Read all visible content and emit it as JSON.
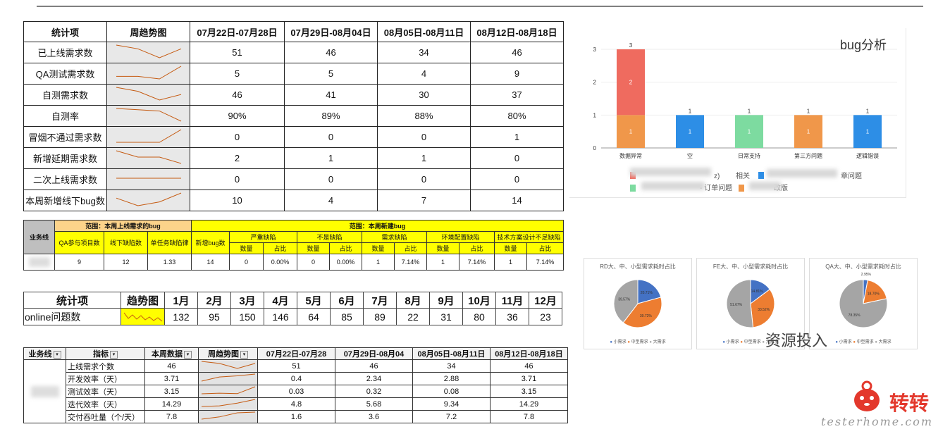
{
  "table1": {
    "headers": [
      "统计项",
      "周趋势图",
      "07月22日-07月28日",
      "07月29日-08月04日",
      "08月05日-08月11日",
      "08月12日-08月18日"
    ],
    "rows": [
      {
        "name": "已上线需求数",
        "values": [
          "51",
          "46",
          "34",
          "46"
        ]
      },
      {
        "name": "QA测试需求数",
        "values": [
          "5",
          "5",
          "4",
          "9"
        ]
      },
      {
        "name": "自测需求数",
        "values": [
          "46",
          "41",
          "30",
          "37"
        ]
      },
      {
        "name": "自测率",
        "values": [
          "90%",
          "89%",
          "88%",
          "80%"
        ]
      },
      {
        "name": "冒烟不通过需求数",
        "values": [
          "0",
          "0",
          "0",
          "1"
        ]
      },
      {
        "name": "新增延期需求数",
        "values": [
          "2",
          "1",
          "1",
          "0"
        ]
      },
      {
        "name": "二次上线需求数",
        "values": [
          "0",
          "0",
          "0",
          "0"
        ]
      },
      {
        "name": "本周新增线下bug数",
        "values": [
          "10",
          "4",
          "7",
          "14"
        ]
      }
    ]
  },
  "table2": {
    "biz_label": "业务线",
    "group1": "范围：本周上线需求的bug",
    "group2": "范围：本周新建bug",
    "cols1": [
      "QA参与项目数",
      "线下缺陷数",
      "单任务缺陷律"
    ],
    "new_bug": "新增bug数",
    "groups": [
      "严重缺陷",
      "不是缺陷",
      "需求缺陷",
      "环境配置缺陷",
      "技术方案设计不足缺陷"
    ],
    "sub": [
      "数量",
      "占比"
    ],
    "values": [
      "9",
      "12",
      "1.33",
      "14",
      "0",
      "0.00%",
      "0",
      "0.00%",
      "1",
      "7.14%",
      "1",
      "7.14%",
      "1",
      "7.14%"
    ]
  },
  "table3": {
    "headers": [
      "统计项",
      "趋势图",
      "1月",
      "2月",
      "3月",
      "4月",
      "5月",
      "6月",
      "7月",
      "8月",
      "9月",
      "10月",
      "11月",
      "12月"
    ],
    "row_name": "online问题数",
    "values": [
      "132",
      "95",
      "150",
      "146",
      "64",
      "85",
      "89",
      "22",
      "31",
      "80",
      "36",
      "23"
    ]
  },
  "table4": {
    "headers": [
      "业务线",
      "指标",
      "本周数据",
      "周趋势图",
      "07月22日-07月28",
      "07月29日-08月04",
      "08月05日-08月11日",
      "08月12日-08月18日"
    ],
    "rows": [
      {
        "metric": "上线需求个数",
        "current": "46",
        "values": [
          "51",
          "46",
          "34",
          "46"
        ]
      },
      {
        "metric": "开发效率（天）",
        "current": "3.71",
        "values": [
          "0.4",
          "2.34",
          "2.88",
          "3.71"
        ]
      },
      {
        "metric": "测试效率（天）",
        "current": "3.15",
        "values": [
          "0.03",
          "0.32",
          "0.08",
          "3.15"
        ]
      },
      {
        "metric": "迭代效率（天）",
        "current": "14.29",
        "values": [
          "4.8",
          "5.68",
          "9.34",
          "14.29"
        ]
      },
      {
        "metric": "交付吞吐量（个/天）",
        "current": "7.8",
        "values": [
          "1.6",
          "3.6",
          "7.2",
          "7.8"
        ]
      }
    ]
  },
  "bug_chart": {
    "title": "bug分析",
    "categories": [
      "数据异常",
      "空",
      "日常支持",
      "第三方问题",
      "逻辑错误"
    ],
    "stacks": [
      {
        "bottom": 1,
        "top": 2,
        "total": 3,
        "colors": [
          "#f0974a",
          "#ef6b5f"
        ]
      },
      {
        "bottom": 1,
        "total": 1,
        "colors": [
          "#2d8ee6"
        ]
      },
      {
        "bottom": 1,
        "total": 1,
        "colors": [
          "#7ddba0"
        ]
      },
      {
        "bottom": 1,
        "total": 1,
        "colors": [
          "#f0974a"
        ]
      },
      {
        "bottom": 1,
        "total": 1,
        "colors": [
          "#2d8ee6"
        ]
      }
    ],
    "y_ticks": [
      "0",
      "1",
      "2",
      "3"
    ],
    "legend_fragments": [
      "z)",
      "相关",
      "章问题",
      "- 订单问题",
      "改版"
    ]
  },
  "pies": [
    {
      "title": "RD大、中、小型需求耗时占比",
      "slices": [
        20.71,
        39.72,
        39.57
      ],
      "labels": [
        "20.71%",
        "39.72%",
        "39.57%"
      ]
    },
    {
      "title": "FE大、中、小型需求耗时占比",
      "slices": [
        14.81,
        33.52,
        51.67
      ],
      "labels": [
        "14.81%",
        "33.52%",
        "51.67%"
      ]
    },
    {
      "title": "QA大、中、小型需求耗时占比",
      "slices": [
        2.95,
        18.7,
        78.35
      ],
      "labels": [
        "2.95%",
        "18.70%",
        "78.35%"
      ]
    }
  ],
  "pie_legend": [
    "小需求",
    "中型需求",
    "大需求"
  ],
  "pie_colors": [
    "#4472c4",
    "#ed7d31",
    "#a5a5a5"
  ],
  "resource_label": "资源投入",
  "logo_text": "转转",
  "watermark": "testerhome.com"
}
